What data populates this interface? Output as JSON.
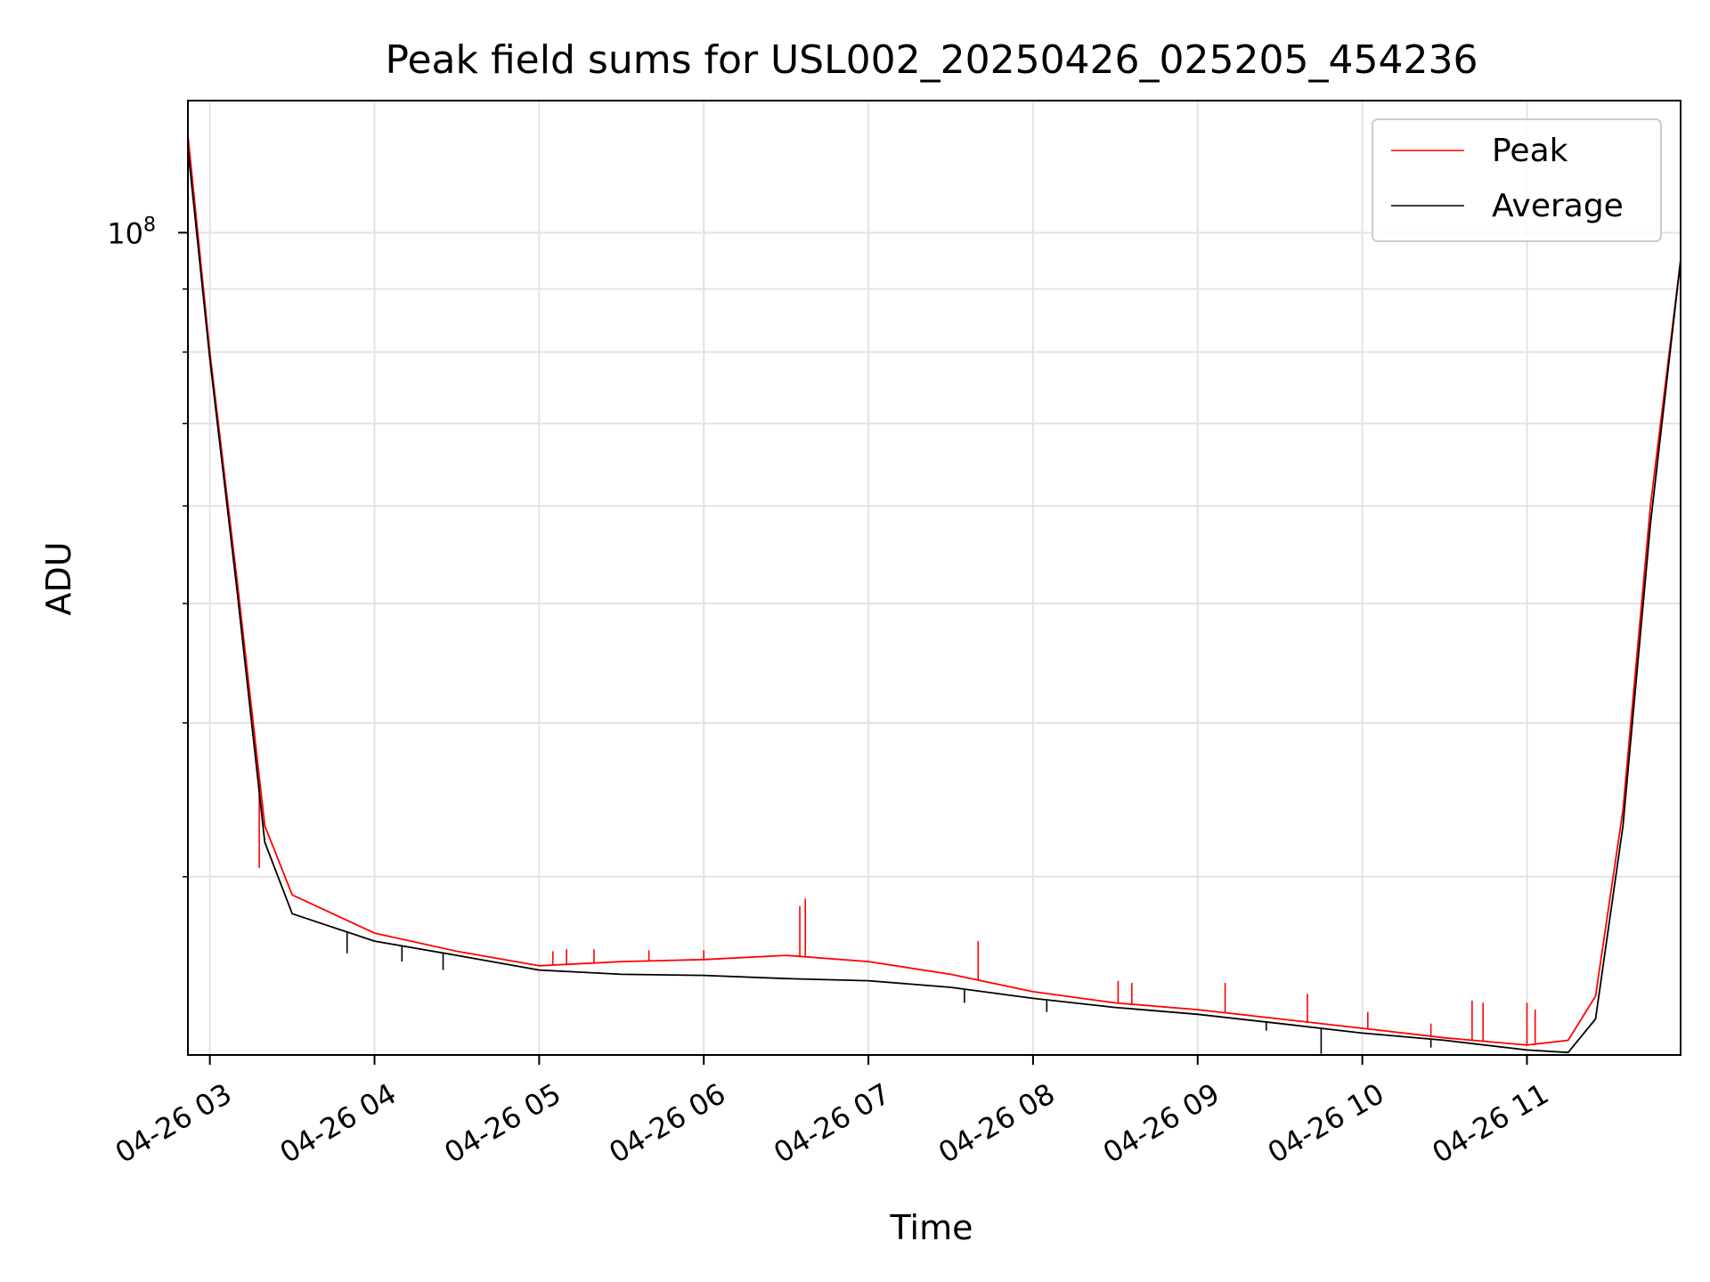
{
  "chart_data": {
    "type": "line",
    "title": "Peak field sums for USL002_20250426_025205_454236",
    "xlabel": "Time",
    "ylabel": "ADU",
    "x_tick_labels": [
      "04-26 03",
      "04-26 04",
      "04-26 05",
      "04-26 06",
      "04-26 07",
      "04-26 08",
      "04-26 09",
      "04-26 10",
      "04-26 11"
    ],
    "x_tick_times": [
      "2025-04-26 03:00",
      "2025-04-26 04:00",
      "2025-04-26 05:00",
      "2025-04-26 06:00",
      "2025-04-26 07:00",
      "2025-04-26 08:00",
      "2025-04-26 09:00",
      "2025-04-26 10:00",
      "2025-04-26 11:00"
    ],
    "xlim": [
      "2025-04-26 02:52",
      "2025-04-26 11:56"
    ],
    "y_scale": "log",
    "y_tick_label": {
      "base": "10",
      "exponent": "8"
    },
    "ylim": [
      21500000,
      128000000
    ],
    "grid": true,
    "legend_position": "top-right",
    "series": [
      {
        "name": "Peak",
        "color": "#ff0000",
        "points": [
          [
            "2025-04-26 02:52",
            120000000
          ],
          [
            "2025-04-26 03:00",
            80000000
          ],
          [
            "2025-04-26 03:10",
            52000000
          ],
          [
            "2025-04-26 03:20",
            33000000
          ],
          [
            "2025-04-26 03:30",
            29000000
          ],
          [
            "2025-04-26 04:00",
            27000000
          ],
          [
            "2025-04-26 04:30",
            26100000
          ],
          [
            "2025-04-26 05:00",
            25400000
          ],
          [
            "2025-04-26 05:30",
            25600000
          ],
          [
            "2025-04-26 06:00",
            25700000
          ],
          [
            "2025-04-26 06:30",
            25900000
          ],
          [
            "2025-04-26 07:00",
            25600000
          ],
          [
            "2025-04-26 07:30",
            25000000
          ],
          [
            "2025-04-26 08:00",
            24200000
          ],
          [
            "2025-04-26 08:30",
            23700000
          ],
          [
            "2025-04-26 09:00",
            23400000
          ],
          [
            "2025-04-26 09:30",
            23000000
          ],
          [
            "2025-04-26 10:00",
            22600000
          ],
          [
            "2025-04-26 10:30",
            22200000
          ],
          [
            "2025-04-26 11:00",
            21900000
          ],
          [
            "2025-04-26 11:15",
            22100000
          ],
          [
            "2025-04-26 11:25",
            24000000
          ],
          [
            "2025-04-26 11:35",
            34000000
          ],
          [
            "2025-04-26 11:45",
            60000000
          ],
          [
            "2025-04-26 11:56",
            95000000
          ]
        ],
        "spikes": [
          [
            "2025-04-26 03:18",
            30500000
          ],
          [
            "2025-04-26 05:05",
            26100000
          ],
          [
            "2025-04-26 05:10",
            26200000
          ],
          [
            "2025-04-26 05:20",
            26200000
          ],
          [
            "2025-04-26 05:40",
            26150000
          ],
          [
            "2025-04-26 06:00",
            26150000
          ],
          [
            "2025-04-26 06:35",
            28400000
          ],
          [
            "2025-04-26 06:37",
            28800000
          ],
          [
            "2025-04-26 07:40",
            26600000
          ],
          [
            "2025-04-26 08:31",
            24700000
          ],
          [
            "2025-04-26 08:36",
            24600000
          ],
          [
            "2025-04-26 09:10",
            24600000
          ],
          [
            "2025-04-26 09:40",
            24100000
          ],
          [
            "2025-04-26 10:02",
            23300000
          ],
          [
            "2025-04-26 10:25",
            22800000
          ],
          [
            "2025-04-26 10:40",
            23800000
          ],
          [
            "2025-04-26 10:44",
            23700000
          ],
          [
            "2025-04-26 11:00",
            23700000
          ],
          [
            "2025-04-26 11:03",
            23400000
          ]
        ]
      },
      {
        "name": "Average",
        "color": "#000000",
        "points": [
          [
            "2025-04-26 02:52",
            117000000
          ],
          [
            "2025-04-26 03:00",
            79000000
          ],
          [
            "2025-04-26 03:10",
            51000000
          ],
          [
            "2025-04-26 03:20",
            32000000
          ],
          [
            "2025-04-26 03:30",
            28000000
          ],
          [
            "2025-04-26 04:00",
            26600000
          ],
          [
            "2025-04-26 04:30",
            25900000
          ],
          [
            "2025-04-26 05:00",
            25200000
          ],
          [
            "2025-04-26 05:30",
            25000000
          ],
          [
            "2025-04-26 06:00",
            24950000
          ],
          [
            "2025-04-26 06:30",
            24800000
          ],
          [
            "2025-04-26 07:00",
            24700000
          ],
          [
            "2025-04-26 07:30",
            24400000
          ],
          [
            "2025-04-26 08:00",
            23900000
          ],
          [
            "2025-04-26 08:30",
            23500000
          ],
          [
            "2025-04-26 09:00",
            23200000
          ],
          [
            "2025-04-26 09:30",
            22800000
          ],
          [
            "2025-04-26 10:00",
            22400000
          ],
          [
            "2025-04-26 10:30",
            22100000
          ],
          [
            "2025-04-26 11:00",
            21700000
          ],
          [
            "2025-04-26 11:15",
            21600000
          ],
          [
            "2025-04-26 11:25",
            23000000
          ],
          [
            "2025-04-26 11:35",
            33000000
          ],
          [
            "2025-04-26 11:45",
            58000000
          ],
          [
            "2025-04-26 11:56",
            95000000
          ]
        ],
        "dips": [
          [
            "2025-04-26 03:50",
            26000000
          ],
          [
            "2025-04-26 04:10",
            25600000
          ],
          [
            "2025-04-26 04:25",
            25200000
          ],
          [
            "2025-04-26 06:38",
            24800000
          ],
          [
            "2025-04-26 07:35",
            23700000
          ],
          [
            "2025-04-26 08:05",
            23300000
          ],
          [
            "2025-04-26 09:25",
            22500000
          ],
          [
            "2025-04-26 09:45",
            21550000
          ],
          [
            "2025-04-26 10:25",
            21800000
          ]
        ]
      }
    ]
  }
}
